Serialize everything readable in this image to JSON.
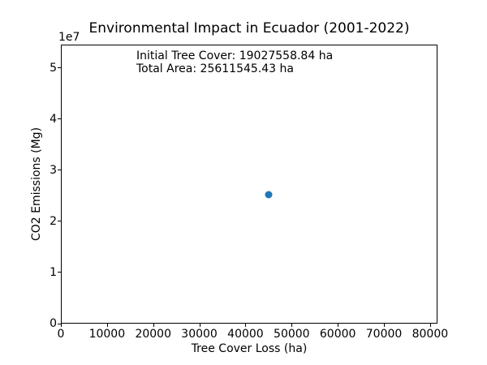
{
  "figure": {
    "title": "Environmental Impact in Ecuador (2001-2022)",
    "y_offset_label": "1e7",
    "annotation_line1": "Initial Tree Cover: 19027558.84 ha",
    "annotation_line2": "Total Area: 25611545.43 ha"
  },
  "chart_data": {
    "type": "scatter",
    "title": "Environmental Impact in Ecuador (2001-2022)",
    "xlabel": "Tree Cover Loss (ha)",
    "ylabel": "CO2 Emissions (Mg)",
    "y_axis_offset_text": "1e7",
    "annotations": [
      "Initial Tree Cover: 19027558.84 ha",
      "Total Area: 25611545.43 ha"
    ],
    "xlim": [
      0,
      81600
    ],
    "ylim": [
      0,
      54600000
    ],
    "x_ticks": [
      0,
      10000,
      20000,
      30000,
      40000,
      50000,
      60000,
      70000,
      80000
    ],
    "y_tick_values": [
      0,
      10000000,
      20000000,
      30000000,
      40000000,
      50000000
    ],
    "y_tick_labels": [
      "0",
      "1",
      "2",
      "3",
      "4",
      "5"
    ],
    "grid": false,
    "legend": null,
    "marker_color": "#1f77b4",
    "points": [
      {
        "x": 45000,
        "y": 25300000
      }
    ]
  }
}
